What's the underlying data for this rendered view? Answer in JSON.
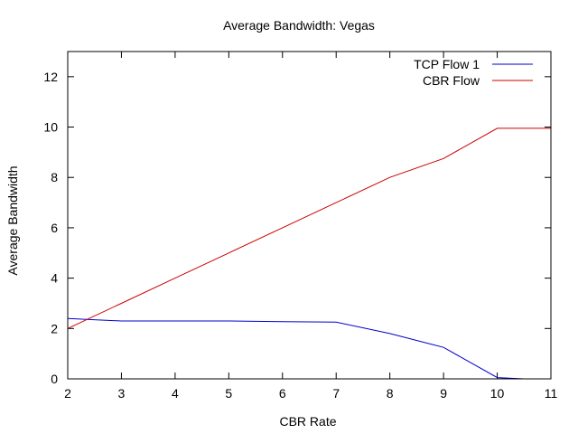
{
  "chart_data": {
    "type": "line",
    "title": "Average Bandwidth: Vegas",
    "xlabel": "CBR Rate",
    "ylabel": "Average Bandwidth",
    "xlim": [
      2,
      11
    ],
    "ylim": [
      0,
      13
    ],
    "xticks": [
      2,
      3,
      4,
      5,
      6,
      7,
      8,
      9,
      10,
      11
    ],
    "yticks": [
      0,
      2,
      4,
      6,
      8,
      10,
      12
    ],
    "grid": false,
    "legend_position": "top-right",
    "series": [
      {
        "name": "TCP Flow 1",
        "color": "#0000cc",
        "x": [
          2,
          3,
          4,
          5,
          6,
          7,
          8,
          9,
          10,
          10.5
        ],
        "y": [
          2.4,
          2.3,
          2.3,
          2.3,
          2.27,
          2.25,
          1.8,
          1.25,
          0.05,
          0.0
        ]
      },
      {
        "name": "CBR Flow",
        "color": "#cc0000",
        "x": [
          2,
          3,
          4,
          5,
          6,
          7,
          8,
          9,
          10,
          11
        ],
        "y": [
          2.0,
          3.0,
          4.0,
          5.0,
          6.0,
          7.0,
          8.0,
          8.75,
          9.95,
          9.95
        ]
      }
    ]
  }
}
